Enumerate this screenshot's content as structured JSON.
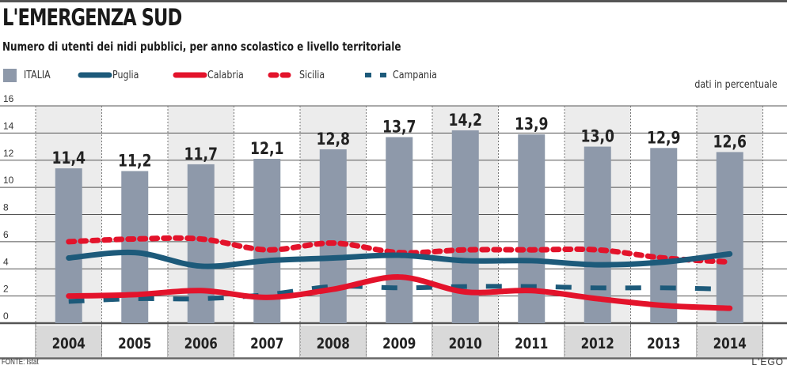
{
  "header": {
    "title": "L'EMERGENZA SUD",
    "subtitle": "Numero di utenti dei nidi pubblici, per anno scolastico e livello territoriale",
    "unit_note": "dati in percentuale"
  },
  "footer": {
    "source": "FONTE: Istat",
    "logo": "L'EGO"
  },
  "colors": {
    "italia": "#8e99aa",
    "puglia": "#1d5a7a",
    "calabria": "#e3132b",
    "sicilia": "#e3132b",
    "campania": "#1d5a7a",
    "band": "#ececec",
    "year_band": "#d9d9d9"
  },
  "legend": [
    {
      "key": "italia",
      "label": "ITALIA",
      "style": "bar"
    },
    {
      "key": "puglia",
      "label": "Puglia",
      "style": "solid"
    },
    {
      "key": "calabria",
      "label": "Calabria",
      "style": "solid"
    },
    {
      "key": "sicilia",
      "label": "Sicilia",
      "style": "dotted"
    },
    {
      "key": "campania",
      "label": "Campania",
      "style": "dashed"
    }
  ],
  "chart_data": {
    "type": "bar",
    "title": "L'EMERGENZA SUD",
    "subtitle": "Numero di utenti dei nidi pubblici, per anno scolastico e livello territoriale",
    "ylabel": "dati in percentuale",
    "xlabel": "",
    "ylim": [
      0,
      16
    ],
    "yticks": [
      "0",
      "2",
      "4",
      "6",
      "8",
      "10",
      "12",
      "14",
      "16"
    ],
    "grid": true,
    "legend_position": "top-left",
    "categories": [
      "2004",
      "2005",
      "2006",
      "2007",
      "2008",
      "2009",
      "2010",
      "2011",
      "2012",
      "2013",
      "2014"
    ],
    "series": [
      {
        "name": "ITALIA",
        "type": "bar",
        "values": [
          11.4,
          11.2,
          11.7,
          12.1,
          12.8,
          13.7,
          14.2,
          13.9,
          13.0,
          12.9,
          12.6
        ],
        "labels": [
          "11,4",
          "11,2",
          "11,7",
          "12,1",
          "12,8",
          "13,7",
          "14,2",
          "13,9",
          "13,0",
          "12,9",
          "12,6"
        ]
      },
      {
        "name": "Puglia",
        "type": "line",
        "values": [
          4.8,
          5.2,
          4.2,
          4.6,
          4.8,
          5.0,
          4.6,
          4.6,
          4.3,
          4.5,
          5.1
        ]
      },
      {
        "name": "Calabria",
        "type": "line",
        "values": [
          2.0,
          2.1,
          2.4,
          1.9,
          2.5,
          3.4,
          2.3,
          2.4,
          1.8,
          1.3,
          1.1
        ]
      },
      {
        "name": "Sicilia",
        "type": "line",
        "values": [
          6.0,
          6.2,
          6.2,
          5.4,
          5.9,
          5.2,
          5.4,
          5.4,
          5.4,
          4.8,
          4.5
        ]
      },
      {
        "name": "Campania",
        "type": "line",
        "values": [
          1.6,
          1.8,
          1.8,
          2.1,
          2.7,
          2.6,
          2.7,
          2.7,
          2.6,
          2.6,
          2.5
        ]
      }
    ]
  }
}
